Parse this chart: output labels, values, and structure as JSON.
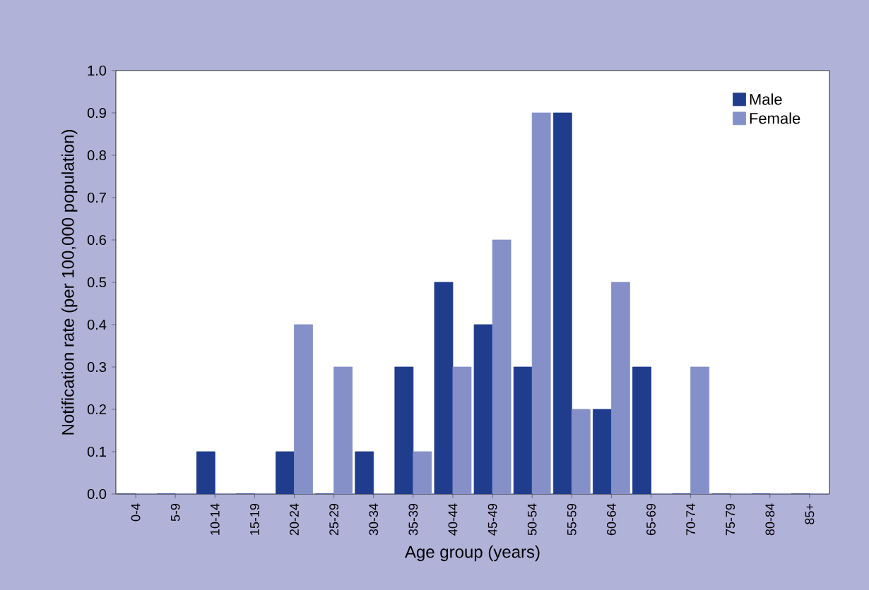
{
  "chart_data": {
    "type": "bar",
    "xlabel": "Age group (years)",
    "ylabel": "Notification rate (per 100,000 population)",
    "categories": [
      "0-4",
      "5-9",
      "10-14",
      "15-19",
      "20-24",
      "25-29",
      "30-34",
      "35-39",
      "40-44",
      "45-49",
      "50-54",
      "55-59",
      "60-64",
      "65-69",
      "70-74",
      "75-79",
      "80-84",
      "85+"
    ],
    "series": [
      {
        "name": "Male",
        "color": "#1f3d8c",
        "values": [
          0,
          0,
          0.1,
          0,
          0.1,
          0,
          0.1,
          0.3,
          0.5,
          0.4,
          0.3,
          0.9,
          0.2,
          0.3,
          0,
          0,
          0,
          0
        ]
      },
      {
        "name": "Female",
        "color": "#8590c8",
        "values": [
          0,
          0,
          0,
          0,
          0.4,
          0.3,
          0,
          0.1,
          0.3,
          0.6,
          0.9,
          0.2,
          0.5,
          0,
          0.3,
          0,
          0,
          0
        ]
      }
    ],
    "ylim": [
      0,
      1
    ],
    "yticks": [
      {
        "value": 0,
        "label": "0.0"
      },
      {
        "value": 0.1,
        "label": "0.1"
      },
      {
        "value": 0.2,
        "label": "0.2"
      },
      {
        "value": 0.3,
        "label": "0.3"
      },
      {
        "value": 0.4,
        "label": "0.4"
      },
      {
        "value": 0.5,
        "label": "0.5"
      },
      {
        "value": 0.6,
        "label": "0.6"
      },
      {
        "value": 0.7,
        "label": "0.7"
      },
      {
        "value": 0.8,
        "label": "0.8"
      },
      {
        "value": 0.9,
        "label": "0.9"
      },
      {
        "value": 1,
        "label": "1.0"
      }
    ],
    "legend": "top right",
    "grid": false
  }
}
